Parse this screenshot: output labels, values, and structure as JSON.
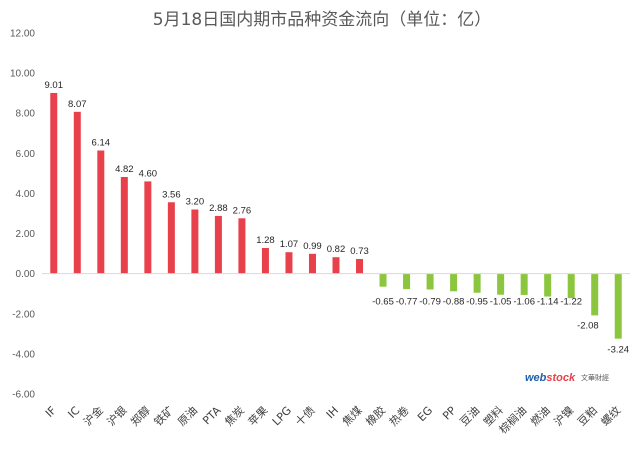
{
  "chart_data": {
    "type": "bar",
    "title": "5月18日国内期市品种资金流向（单位：亿）",
    "categories": [
      "IF",
      "IC",
      "沪金",
      "沪银",
      "郑醇",
      "铁矿",
      "原油",
      "PTA",
      "焦炭",
      "苹果",
      "LPG",
      "十债",
      "IH",
      "焦煤",
      "橡胶",
      "热卷",
      "EG",
      "PP",
      "豆油",
      "塑料",
      "棕榈油",
      "燃油",
      "沪镍",
      "豆粕",
      "螺纹"
    ],
    "values": [
      9.01,
      8.07,
      6.14,
      4.82,
      4.6,
      3.56,
      3.2,
      2.88,
      2.76,
      1.28,
      1.07,
      0.99,
      0.82,
      0.73,
      -0.65,
      -0.77,
      -0.79,
      -0.88,
      -0.95,
      -1.05,
      -1.06,
      -1.14,
      -1.22,
      -2.08,
      -3.24
    ],
    "value_labels": [
      "9.01",
      "8.07",
      "6.14",
      "4.82",
      "4.60",
      "3.56",
      "3.20",
      "2.88",
      "2.76",
      "1.28",
      "1.07",
      "0.99",
      "0.82",
      "0.73",
      "-0.65",
      "-0.77",
      "-0.79",
      "-0.88",
      "-0.95",
      "-1.05",
      "-1.06",
      "-1.14",
      "-1.22",
      "-2.08",
      "-3.24"
    ],
    "ylim": [
      -6,
      12
    ],
    "yticks": [
      "-6.00",
      "-4.00",
      "-2.00",
      "0.00",
      "2.00",
      "4.00",
      "6.00",
      "8.00",
      "10.00",
      "12.00"
    ],
    "grid": false,
    "colors": {
      "positive": "#e8414b",
      "negative": "#8cc63e",
      "axis": "#d9d9d9"
    }
  },
  "watermark": {
    "brand_prefix": "web",
    "brand_suffix": "stock",
    "brand_cn": "文華財經"
  }
}
